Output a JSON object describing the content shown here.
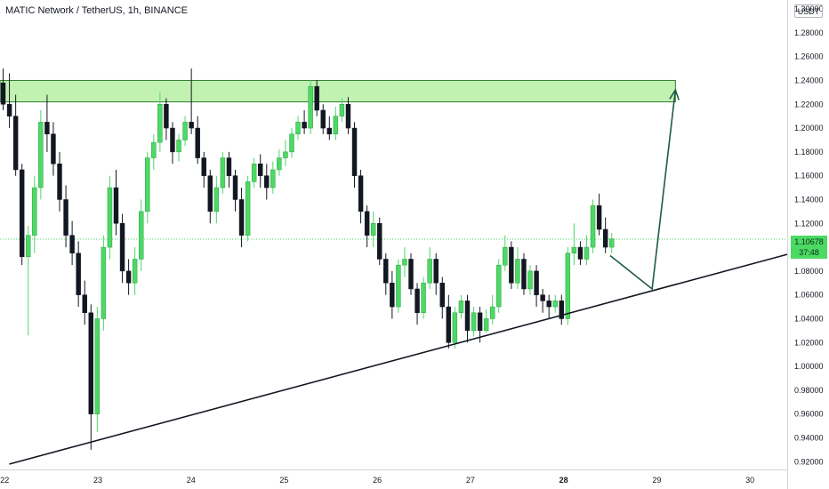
{
  "header": {
    "symbol_line": "MATIC Network / TetherUS, 1h, BINANCE",
    "unit": "USDT"
  },
  "price_tag": {
    "price": "1.10678",
    "countdown": "37:48"
  },
  "colors": {
    "up": "#4cd964",
    "down": "#131722",
    "wick_up": "#4cd964",
    "wick_down": "#131722",
    "zone_fill": "#b7f0a5",
    "zone_stroke": "#2e7d32",
    "arrow": "#1e5a4a",
    "trendline": "#131722"
  },
  "chart_data": {
    "type": "candlestick",
    "title": "MATIC Network / TetherUS, 1h, BINANCE",
    "xlabel": "",
    "ylabel": "USDT",
    "x_ticks": [
      "22",
      "23",
      "24",
      "25",
      "26",
      "27",
      "28",
      "29",
      "30"
    ],
    "bold_x_tick": "28",
    "y_ticks": [
      "1.30000",
      "1.28000",
      "1.26000",
      "1.24000",
      "1.22000",
      "1.20000",
      "1.18000",
      "1.16000",
      "1.14000",
      "1.12000",
      "1.10000",
      "1.08000",
      "1.06000",
      "1.04000",
      "1.02000",
      "1.00000",
      "0.98000",
      "0.96000",
      "0.94000",
      "0.92000"
    ],
    "xlim": [
      21.95,
      30.4
    ],
    "ylim": [
      0.9135,
      1.3075
    ],
    "last_price": 1.10678,
    "resistance_zone": {
      "x_start": 21.95,
      "x_end": 29.2,
      "low": 1.222,
      "high": 1.24
    },
    "support_trendline": [
      [
        22.05,
        0.918
      ],
      [
        30.4,
        1.094
      ]
    ],
    "projection_path": [
      [
        28.5,
        1.093
      ],
      [
        28.95,
        1.065
      ],
      [
        29.2,
        1.232
      ]
    ],
    "ohlc": [
      [
        1.238,
        1.25,
        1.215,
        1.22
      ],
      [
        1.22,
        1.246,
        1.2,
        1.21
      ],
      [
        1.21,
        1.228,
        1.16,
        1.165
      ],
      [
        1.165,
        1.17,
        1.085,
        1.092
      ],
      [
        1.092,
        1.118,
        1.026,
        1.11
      ],
      [
        1.11,
        1.16,
        1.095,
        1.15
      ],
      [
        1.15,
        1.215,
        1.14,
        1.205
      ],
      [
        1.205,
        1.228,
        1.18,
        1.195
      ],
      [
        1.195,
        1.205,
        1.16,
        1.17
      ],
      [
        1.17,
        1.18,
        1.13,
        1.14
      ],
      [
        1.14,
        1.152,
        1.1,
        1.11
      ],
      [
        1.11,
        1.122,
        1.085,
        1.095
      ],
      [
        1.095,
        1.105,
        1.05,
        1.06
      ],
      [
        1.06,
        1.072,
        1.035,
        1.045
      ],
      [
        1.045,
        1.052,
        0.93,
        0.96
      ],
      [
        0.96,
        1.05,
        0.945,
        1.04
      ],
      [
        1.04,
        1.11,
        1.03,
        1.1
      ],
      [
        1.1,
        1.16,
        1.09,
        1.15
      ],
      [
        1.15,
        1.165,
        1.11,
        1.12
      ],
      [
        1.12,
        1.128,
        1.07,
        1.08
      ],
      [
        1.08,
        1.09,
        1.06,
        1.07
      ],
      [
        1.07,
        1.1,
        1.06,
        1.09
      ],
      [
        1.09,
        1.14,
        1.08,
        1.13
      ],
      [
        1.13,
        1.18,
        1.12,
        1.175
      ],
      [
        1.175,
        1.195,
        1.165,
        1.188
      ],
      [
        1.188,
        1.23,
        1.18,
        1.22
      ],
      [
        1.22,
        1.225,
        1.19,
        1.2
      ],
      [
        1.2,
        1.205,
        1.17,
        1.18
      ],
      [
        1.18,
        1.195,
        1.172,
        1.19
      ],
      [
        1.19,
        1.21,
        1.185,
        1.205
      ],
      [
        1.205,
        1.25,
        1.195,
        1.2
      ],
      [
        1.2,
        1.21,
        1.17,
        1.175
      ],
      [
        1.175,
        1.18,
        1.15,
        1.16
      ],
      [
        1.16,
        1.165,
        1.12,
        1.13
      ],
      [
        1.13,
        1.16,
        1.12,
        1.15
      ],
      [
        1.15,
        1.18,
        1.145,
        1.175
      ],
      [
        1.175,
        1.18,
        1.15,
        1.16
      ],
      [
        1.16,
        1.165,
        1.13,
        1.14
      ],
      [
        1.14,
        1.15,
        1.1,
        1.11
      ],
      [
        1.11,
        1.16,
        1.105,
        1.155
      ],
      [
        1.155,
        1.175,
        1.15,
        1.17
      ],
      [
        1.17,
        1.178,
        1.15,
        1.16
      ],
      [
        1.16,
        1.17,
        1.14,
        1.15
      ],
      [
        1.15,
        1.172,
        1.145,
        1.165
      ],
      [
        1.165,
        1.182,
        1.16,
        1.175
      ],
      [
        1.175,
        1.19,
        1.168,
        1.18
      ],
      [
        1.18,
        1.2,
        1.175,
        1.195
      ],
      [
        1.195,
        1.21,
        1.19,
        1.205
      ],
      [
        1.205,
        1.215,
        1.195,
        1.2
      ],
      [
        1.2,
        1.24,
        1.195,
        1.235
      ],
      [
        1.235,
        1.24,
        1.21,
        1.215
      ],
      [
        1.215,
        1.22,
        1.195,
        1.2
      ],
      [
        1.2,
        1.21,
        1.19,
        1.195
      ],
      [
        1.195,
        1.218,
        1.19,
        1.21
      ],
      [
        1.21,
        1.225,
        1.205,
        1.22
      ],
      [
        1.22,
        1.226,
        1.195,
        1.2
      ],
      [
        1.2,
        1.205,
        1.15,
        1.16
      ],
      [
        1.16,
        1.165,
        1.12,
        1.13
      ],
      [
        1.13,
        1.135,
        1.1,
        1.11
      ],
      [
        1.11,
        1.13,
        1.1,
        1.12
      ],
      [
        1.12,
        1.125,
        1.085,
        1.09
      ],
      [
        1.09,
        1.095,
        1.06,
        1.07
      ],
      [
        1.07,
        1.08,
        1.04,
        1.05
      ],
      [
        1.05,
        1.09,
        1.045,
        1.085
      ],
      [
        1.085,
        1.1,
        1.075,
        1.09
      ],
      [
        1.09,
        1.095,
        1.06,
        1.065
      ],
      [
        1.065,
        1.07,
        1.035,
        1.045
      ],
      [
        1.045,
        1.075,
        1.04,
        1.07
      ],
      [
        1.07,
        1.1,
        1.065,
        1.09
      ],
      [
        1.09,
        1.095,
        1.06,
        1.07
      ],
      [
        1.07,
        1.075,
        1.04,
        1.05
      ],
      [
        1.05,
        1.06,
        1.015,
        1.02
      ],
      [
        1.02,
        1.05,
        1.015,
        1.045
      ],
      [
        1.045,
        1.06,
        1.04,
        1.055
      ],
      [
        1.055,
        1.06,
        1.02,
        1.03
      ],
      [
        1.03,
        1.05,
        1.025,
        1.045
      ],
      [
        1.045,
        1.05,
        1.02,
        1.03
      ],
      [
        1.03,
        1.048,
        1.028,
        1.04
      ],
      [
        1.04,
        1.06,
        1.035,
        1.05
      ],
      [
        1.05,
        1.09,
        1.045,
        1.085
      ],
      [
        1.085,
        1.11,
        1.08,
        1.1
      ],
      [
        1.1,
        1.105,
        1.065,
        1.07
      ],
      [
        1.07,
        1.1,
        1.065,
        1.09
      ],
      [
        1.09,
        1.095,
        1.06,
        1.065
      ],
      [
        1.065,
        1.085,
        1.06,
        1.08
      ],
      [
        1.08,
        1.085,
        1.05,
        1.06
      ],
      [
        1.06,
        1.065,
        1.045,
        1.055
      ],
      [
        1.055,
        1.06,
        1.04,
        1.05
      ],
      [
        1.05,
        1.06,
        1.045,
        1.055
      ],
      [
        1.055,
        1.06,
        1.035,
        1.04
      ],
      [
        1.04,
        1.1,
        1.035,
        1.095
      ],
      [
        1.095,
        1.12,
        1.085,
        1.1
      ],
      [
        1.1,
        1.105,
        1.085,
        1.09
      ],
      [
        1.09,
        1.11,
        1.085,
        1.1
      ],
      [
        1.1,
        1.14,
        1.095,
        1.135
      ],
      [
        1.135,
        1.145,
        1.11,
        1.115
      ],
      [
        1.115,
        1.125,
        1.095,
        1.1
      ],
      [
        1.1,
        1.112,
        1.095,
        1.107
      ]
    ]
  }
}
